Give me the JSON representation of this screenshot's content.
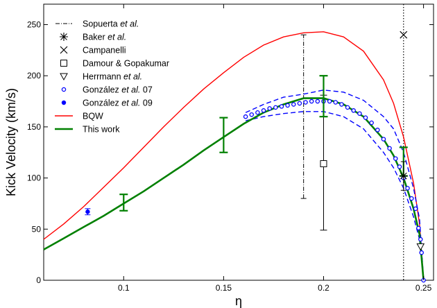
{
  "chart_data": {
    "type": "line",
    "xlabel": "η",
    "ylabel": "Kick Velocity (km/s)",
    "xlim": [
      0.06,
      0.255
    ],
    "ylim": [
      0,
      270
    ],
    "grid": false,
    "legend_position": "top-left",
    "x_ticks": [
      0.1,
      0.15,
      0.2,
      0.25
    ],
    "x_tick_labels": [
      "0.1",
      "0.15",
      "0.2",
      "0.25"
    ],
    "y_ticks": [
      0,
      50,
      100,
      150,
      200,
      250
    ],
    "y_tick_labels": [
      "0",
      "50",
      "100",
      "150",
      "200",
      "250"
    ],
    "legend": [
      {
        "key": "sopuerta",
        "pre": "Sopuerta ",
        "em": "et al.",
        "post": "",
        "marker": "dashdot",
        "color": "#000000"
      },
      {
        "key": "baker",
        "pre": "Baker ",
        "em": "et al.",
        "post": "",
        "marker": "asterisk",
        "color": "#000000"
      },
      {
        "key": "campanelli",
        "pre": "Campanelli",
        "em": "",
        "post": "",
        "marker": "x",
        "color": "#000000"
      },
      {
        "key": "damour",
        "pre": "Damour & Gopakumar",
        "em": "",
        "post": "",
        "marker": "square",
        "color": "#000000"
      },
      {
        "key": "herrmann",
        "pre": "Herrmann ",
        "em": "et al.",
        "post": "",
        "marker": "triangle-down",
        "color": "#000000"
      },
      {
        "key": "gonzalez07",
        "pre": "González ",
        "em": "et al.",
        "post": " 07",
        "marker": "open-circle",
        "color": "#0000ff"
      },
      {
        "key": "gonzalez09",
        "pre": "González ",
        "em": "et al.",
        "post": " 09",
        "marker": "filled-circle",
        "color": "#0000ff"
      },
      {
        "key": "bqw",
        "pre": "BQW",
        "em": "",
        "post": "",
        "marker": "line",
        "color": "#ff0000"
      },
      {
        "key": "thiswork",
        "pre": "This work",
        "em": "",
        "post": "",
        "marker": "thick-line",
        "color": "#008000"
      }
    ],
    "series": {
      "bqw": {
        "name": "BQW",
        "color": "#ff0000",
        "x": [
          0.06,
          0.07,
          0.08,
          0.09,
          0.1,
          0.11,
          0.12,
          0.13,
          0.14,
          0.15,
          0.16,
          0.17,
          0.18,
          0.19,
          0.2,
          0.21,
          0.22,
          0.23,
          0.235,
          0.24,
          0.245,
          0.248,
          0.25
        ],
        "y": [
          40,
          55,
          72,
          91,
          110,
          130,
          150,
          169,
          187,
          203,
          218,
          230,
          238,
          242,
          243,
          238,
          224,
          196,
          173,
          140,
          95,
          55,
          0
        ]
      },
      "thiswork": {
        "name": "This work",
        "color": "#008000",
        "x": [
          0.06,
          0.07,
          0.08,
          0.09,
          0.1,
          0.11,
          0.12,
          0.13,
          0.14,
          0.15,
          0.16,
          0.17,
          0.18,
          0.19,
          0.2,
          0.21,
          0.22,
          0.23,
          0.235,
          0.24,
          0.245,
          0.248,
          0.25
        ],
        "y": [
          30,
          41,
          52,
          63,
          75,
          87,
          100,
          113,
          127,
          140,
          153,
          164,
          172,
          178,
          178,
          172,
          160,
          138,
          122,
          100,
          70,
          45,
          0
        ]
      },
      "gonzalez07": {
        "name": "González et al. 07",
        "color": "#0000ff",
        "points": [
          [
            0.161,
            160
          ],
          [
            0.164,
            162
          ],
          [
            0.167,
            164
          ],
          [
            0.17,
            166
          ],
          [
            0.173,
            168
          ],
          [
            0.176,
            169
          ],
          [
            0.179,
            170
          ],
          [
            0.182,
            171
          ],
          [
            0.185,
            172
          ],
          [
            0.188,
            173
          ],
          [
            0.191,
            174
          ],
          [
            0.194,
            175
          ],
          [
            0.197,
            175
          ],
          [
            0.2,
            175
          ],
          [
            0.203,
            175
          ],
          [
            0.206,
            174
          ],
          [
            0.209,
            172
          ],
          [
            0.212,
            169
          ],
          [
            0.215,
            166
          ],
          [
            0.218,
            163
          ],
          [
            0.221,
            159
          ],
          [
            0.224,
            154
          ],
          [
            0.227,
            147
          ],
          [
            0.23,
            138
          ],
          [
            0.233,
            129
          ],
          [
            0.236,
            119
          ],
          [
            0.238,
            111
          ],
          [
            0.24,
            100
          ],
          [
            0.242,
            90
          ],
          [
            0.244,
            80
          ],
          [
            0.246,
            70
          ],
          [
            0.2475,
            51
          ],
          [
            0.2485,
            40
          ],
          [
            0.249,
            27
          ],
          [
            0.25,
            0
          ]
        ],
        "band_upper": [
          [
            0.161,
            164
          ],
          [
            0.17,
            172
          ],
          [
            0.18,
            179
          ],
          [
            0.19,
            182
          ],
          [
            0.2,
            186
          ],
          [
            0.21,
            184
          ],
          [
            0.22,
            176
          ],
          [
            0.23,
            160
          ],
          [
            0.235,
            148
          ],
          [
            0.24,
            125
          ],
          [
            0.245,
            90
          ],
          [
            0.248,
            60
          ],
          [
            0.25,
            2
          ]
        ],
        "band_lower": [
          [
            0.161,
            156
          ],
          [
            0.17,
            160
          ],
          [
            0.18,
            163
          ],
          [
            0.19,
            165
          ],
          [
            0.2,
            165
          ],
          [
            0.21,
            160
          ],
          [
            0.22,
            148
          ],
          [
            0.23,
            125
          ],
          [
            0.235,
            110
          ],
          [
            0.24,
            90
          ],
          [
            0.245,
            62
          ],
          [
            0.248,
            40
          ],
          [
            0.25,
            0
          ]
        ]
      },
      "gonzalez09": {
        "name": "González et al. 09",
        "color": "#0000ff",
        "points": [
          [
            0.082,
            67,
            3
          ]
        ]
      },
      "thiswork_errorbars": {
        "color": "#008000",
        "points": [
          [
            0.1,
            76,
            8
          ],
          [
            0.15,
            142,
            17
          ],
          [
            0.2,
            180,
            20
          ],
          [
            0.24,
            116,
            14
          ]
        ]
      },
      "sopuerta": {
        "name": "Sopuerta et al.",
        "x": 0.19,
        "ylow": 80,
        "yhigh": 240
      },
      "campanelli": {
        "name": "Campanelli",
        "x": 0.24,
        "y": 240,
        "line_to": 0
      },
      "baker": {
        "name": "Baker et al.",
        "x": 0.24,
        "y": 102,
        "err": 14
      },
      "damour": {
        "name": "Damour & Gopakumar",
        "x": 0.2,
        "y": 114,
        "ylow": 49,
        "yhigh": 181
      },
      "herrmann": {
        "name": "Herrmann et al.",
        "x": 0.2485,
        "y": 33
      }
    }
  }
}
